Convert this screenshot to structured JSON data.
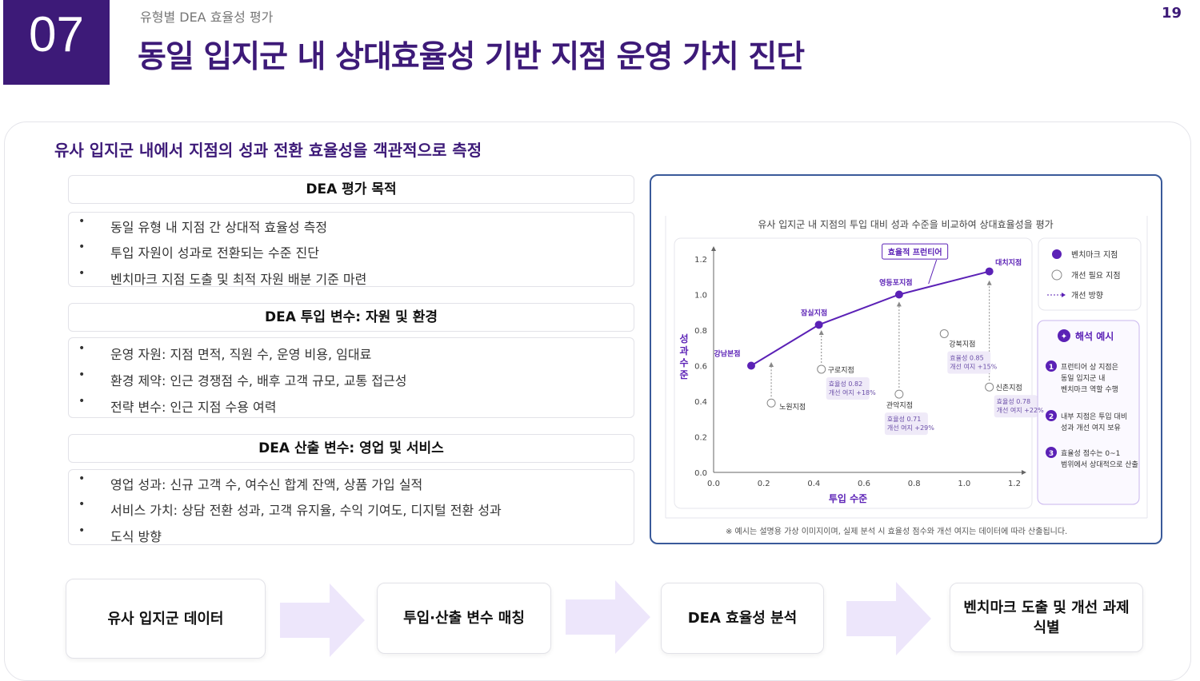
{
  "header": {
    "section_no": "07",
    "eyebrow": "유형별 DEA 효율성 평가",
    "title": "동일 입지군 내 상대효율성 기반 지점 운영 가치 진단",
    "page_no": "19"
  },
  "subtitle": "유사 입지군 내에서 지점의 성과 전환 효율성을 객관적으로 측정",
  "blocks": [
    {
      "heading": "DEA 평가 목적",
      "items": [
        "동일 유형 내 지점 간 상대적 효율성 측정",
        "투입 자원이 성과로 전환되는 수준 진단",
        "벤치마크 지점 도출 및 최적 자원 배분 기준 마련"
      ]
    },
    {
      "heading": "DEA 투입 변수: 자원 및 환경",
      "items": [
        "운영 자원: 지점 면적, 직원 수, 운영 비용, 임대료",
        "환경 제약: 인근 경쟁점 수, 배후 고객 규모, 교통 접근성",
        "전략 변수: 인근 지점 수용 여력"
      ]
    },
    {
      "heading": "DEA 산출 변수: 영업 및 서비스",
      "items": [
        "영업 성과: 신규 고객 수, 여수신 합계 잔액, 상품 가입 실적",
        "서비스 가치: 상담 전환 성과, 고객 유지율, 수익 기여도, 디지털 전환 성과",
        "도식 방향"
      ]
    }
  ],
  "chart_caption": "유사 입지군 내 지점의 투입 대비 성과 수준을 비교하여 상대효율성을 평가",
  "chart_data": {
    "type": "scatter",
    "xlabel": "투입 수준",
    "ylabel": "성과 수준",
    "xlim": [
      0,
      1.2
    ],
    "ylim": [
      0,
      1.2
    ],
    "xticks": [
      "0.0",
      "0.2",
      "0.4",
      "0.6",
      "0.8",
      "1.0",
      "1.2"
    ],
    "yticks": [
      "0.0",
      "0.2",
      "0.4",
      "0.6",
      "0.8",
      "1.0",
      "1.2"
    ],
    "frontier_label": "효율적 프런티어",
    "series": [
      {
        "name": "벤치마크 지점",
        "points": [
          {
            "label": "강남본점",
            "x": 0.15,
            "y": 0.6
          },
          {
            "label": "잠실지점",
            "x": 0.42,
            "y": 0.83
          },
          {
            "label": "영등포지점",
            "x": 0.74,
            "y": 1.0
          },
          {
            "label": "대치지점",
            "x": 1.1,
            "y": 1.13
          }
        ]
      },
      {
        "name": "개선 필요 지점",
        "points": [
          {
            "label": "노원지점",
            "x": 0.23,
            "y": 0.39,
            "target_y": 0.62,
            "detail": []
          },
          {
            "label": "구로지점",
            "x": 0.43,
            "y": 0.58,
            "target_y": 0.8,
            "detail": [
              "효율성 0.82",
              "개선 여지 +18%"
            ]
          },
          {
            "label": "관악지점",
            "x": 0.74,
            "y": 0.44,
            "target_y": 0.96,
            "detail": [
              "효율성 0.71",
              "개선 여지 +29%"
            ]
          },
          {
            "label": "강북지점",
            "x": 0.92,
            "y": 0.78,
            "target_y": 0,
            "detail": [
              "효율성 0.85",
              "개선 여지 +15%"
            ]
          },
          {
            "label": "신촌지점",
            "x": 1.1,
            "y": 0.48,
            "target_y": 1.08,
            "detail": [
              "효율성 0.78",
              "개선 여지 +22%"
            ]
          }
        ]
      }
    ]
  },
  "legend": {
    "benchmark": "벤치마크 지점",
    "improve": "개선 필요 지점",
    "direction": "개선 방향"
  },
  "interpret": {
    "title": "해석 예시",
    "items": [
      {
        "n": "1",
        "text": [
          "프런티어 상 지점은",
          "동일 입지군 내",
          "벤치마크 역할 수행"
        ]
      },
      {
        "n": "2",
        "text": [
          "내부 지점은 투입 대비",
          "성과 개선 여지 보유"
        ]
      },
      {
        "n": "3",
        "text": [
          "효율성 점수는 0~1",
          "범위에서 상대적으로 산출"
        ]
      }
    ]
  },
  "chart_note": "※ 예시는 설명용 가상 이미지이며, 실제 분석 시 효율성 점수와 개선 여지는 데이터에 따라 산출됩니다.",
  "flow": [
    "유사 입지군 데이터",
    "투입·산출 변수 매칭",
    "DEA 효율성 분석",
    "벤치마크 도출 및 개선 과제 식별"
  ],
  "colors": {
    "brand": "#3d1a78",
    "accent": "#5b21b6",
    "arrow": "#ede6fb",
    "panel_border": "#3a5a9a"
  }
}
